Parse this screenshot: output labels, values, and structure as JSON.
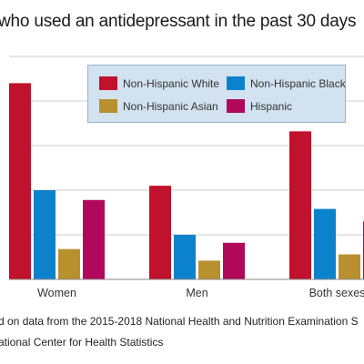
{
  "title": "who used an antidepressant in the past 30 days",
  "footnotes": [
    "d on data from the 2015-2018 National Health and Nutrition Examination S",
    "ational Center for Health Statistics"
  ],
  "colors": {
    "Non-Hispanic White": "#c0122c",
    "Non-Hispanic Black": "#0d82cc",
    "Non-Hispanic Asian": "#b8902e",
    "Hispanic": "#b0085a",
    "gridline": "#cccccc",
    "legend_bg": "#d2e2f0"
  },
  "chart_data": {
    "type": "bar",
    "categories": [
      "Women",
      "Men",
      "Both sexes"
    ],
    "series": [
      {
        "name": "Non-Hispanic White",
        "values": [
          22,
          10.5,
          16.6
        ]
      },
      {
        "name": "Non-Hispanic Black",
        "values": [
          10,
          5,
          7.9
        ]
      },
      {
        "name": "Non-Hispanic Asian",
        "values": [
          3.4,
          2.1,
          2.8
        ]
      },
      {
        "name": "Hispanic",
        "values": [
          8.9,
          4.1,
          6.5
        ]
      }
    ],
    "ylim": [
      0,
      25
    ],
    "yticks": [
      0,
      5,
      10,
      15,
      20,
      25
    ],
    "grid": true,
    "legend_position": "top-right"
  }
}
